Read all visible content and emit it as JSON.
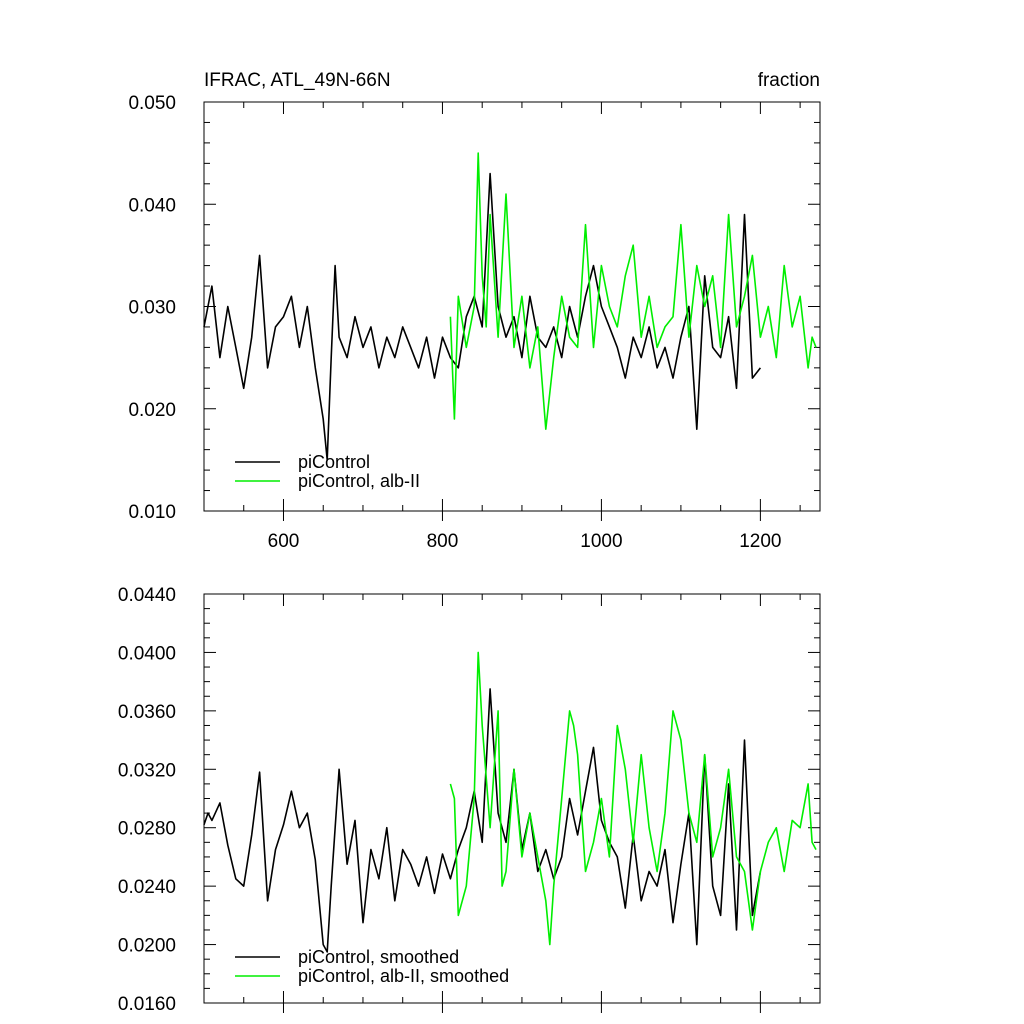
{
  "chart_data": [
    {
      "type": "line",
      "title": "IFRAC, ATL_49N-66N",
      "units": "fraction",
      "xlim": [
        500,
        1275
      ],
      "ylim": [
        0.01,
        0.05
      ],
      "x_ticks": [
        600,
        800,
        1000,
        1200
      ],
      "y_ticks": [
        0.01,
        0.02,
        0.03,
        0.04,
        0.05
      ],
      "y_tick_labels": [
        "0.010",
        "0.020",
        "0.030",
        "0.040",
        "0.050"
      ],
      "grid": false,
      "legend_position": "bottom-left",
      "colors": {
        "piControl": "#000000",
        "alb": "#00ee00"
      },
      "series": [
        {
          "name": "piControl",
          "color": "#000000",
          "x": [
            500,
            510,
            520,
            530,
            540,
            550,
            560,
            570,
            580,
            590,
            600,
            610,
            620,
            630,
            640,
            650,
            655,
            660,
            665,
            670,
            680,
            690,
            700,
            710,
            720,
            730,
            740,
            750,
            760,
            770,
            780,
            790,
            800,
            810,
            820,
            830,
            840,
            850,
            860,
            870,
            880,
            890,
            900,
            910,
            920,
            930,
            940,
            950,
            960,
            970,
            980,
            990,
            1000,
            1010,
            1020,
            1030,
            1040,
            1050,
            1060,
            1070,
            1080,
            1090,
            1100,
            1110,
            1120,
            1130,
            1140,
            1150,
            1160,
            1170,
            1180,
            1190,
            1200
          ],
          "values": [
            0.028,
            0.032,
            0.025,
            0.03,
            0.026,
            0.022,
            0.027,
            0.035,
            0.024,
            0.028,
            0.029,
            0.031,
            0.026,
            0.03,
            0.024,
            0.019,
            0.015,
            0.025,
            0.034,
            0.027,
            0.025,
            0.029,
            0.026,
            0.028,
            0.024,
            0.027,
            0.025,
            0.028,
            0.026,
            0.024,
            0.027,
            0.023,
            0.027,
            0.025,
            0.024,
            0.029,
            0.031,
            0.028,
            0.043,
            0.03,
            0.027,
            0.029,
            0.025,
            0.031,
            0.027,
            0.026,
            0.028,
            0.025,
            0.03,
            0.027,
            0.031,
            0.034,
            0.03,
            0.028,
            0.026,
            0.023,
            0.027,
            0.025,
            0.028,
            0.024,
            0.026,
            0.023,
            0.027,
            0.03,
            0.018,
            0.033,
            0.026,
            0.025,
            0.029,
            0.022,
            0.039,
            0.023,
            0.024
          ]
        },
        {
          "name": "piControl, alb-II",
          "color": "#00ee00",
          "x": [
            810,
            815,
            820,
            830,
            840,
            845,
            850,
            855,
            860,
            870,
            880,
            890,
            900,
            910,
            920,
            930,
            940,
            950,
            960,
            970,
            980,
            990,
            1000,
            1010,
            1020,
            1030,
            1040,
            1050,
            1060,
            1070,
            1080,
            1090,
            1100,
            1110,
            1120,
            1130,
            1140,
            1150,
            1160,
            1170,
            1180,
            1190,
            1200,
            1210,
            1220,
            1230,
            1240,
            1250,
            1260,
            1265,
            1270
          ],
          "values": [
            0.029,
            0.019,
            0.031,
            0.026,
            0.03,
            0.045,
            0.033,
            0.028,
            0.039,
            0.027,
            0.041,
            0.026,
            0.031,
            0.024,
            0.028,
            0.018,
            0.025,
            0.031,
            0.027,
            0.026,
            0.038,
            0.026,
            0.034,
            0.03,
            0.028,
            0.033,
            0.036,
            0.027,
            0.031,
            0.026,
            0.028,
            0.029,
            0.038,
            0.027,
            0.034,
            0.03,
            0.033,
            0.026,
            0.039,
            0.028,
            0.031,
            0.035,
            0.027,
            0.03,
            0.025,
            0.034,
            0.028,
            0.031,
            0.024,
            0.027,
            0.026
          ]
        }
      ]
    },
    {
      "type": "line",
      "xlim": [
        500,
        1275
      ],
      "ylim": [
        0.016,
        0.044
      ],
      "x_ticks": [
        600,
        800,
        1000,
        1200
      ],
      "y_ticks": [
        0.016,
        0.02,
        0.024,
        0.028,
        0.032,
        0.036,
        0.04,
        0.044
      ],
      "y_tick_labels": [
        "0.0160",
        "0.0200",
        "0.0240",
        "0.0280",
        "0.0320",
        "0.0360",
        "0.0400",
        "0.0440"
      ],
      "grid": false,
      "legend_position": "bottom-left",
      "series": [
        {
          "name": "piControl, smoothed",
          "color": "#000000",
          "x": [
            500,
            505,
            510,
            520,
            530,
            540,
            550,
            560,
            570,
            580,
            590,
            600,
            610,
            620,
            630,
            640,
            650,
            655,
            660,
            670,
            680,
            690,
            700,
            710,
            720,
            730,
            740,
            750,
            760,
            770,
            780,
            790,
            800,
            810,
            820,
            830,
            840,
            850,
            860,
            870,
            880,
            890,
            900,
            910,
            920,
            930,
            940,
            950,
            960,
            970,
            980,
            990,
            1000,
            1010,
            1020,
            1030,
            1040,
            1050,
            1060,
            1070,
            1080,
            1090,
            1100,
            1110,
            1120,
            1130,
            1140,
            1150,
            1160,
            1170,
            1180,
            1190,
            1200
          ],
          "values": [
            0.0282,
            0.029,
            0.0285,
            0.0297,
            0.0268,
            0.0245,
            0.024,
            0.0275,
            0.0318,
            0.023,
            0.0265,
            0.0282,
            0.0305,
            0.028,
            0.029,
            0.0258,
            0.02,
            0.0195,
            0.024,
            0.032,
            0.0255,
            0.0285,
            0.0215,
            0.0265,
            0.0245,
            0.028,
            0.023,
            0.0265,
            0.0255,
            0.024,
            0.026,
            0.0235,
            0.0262,
            0.0245,
            0.0265,
            0.028,
            0.0305,
            0.027,
            0.0375,
            0.029,
            0.027,
            0.032,
            0.0265,
            0.029,
            0.025,
            0.0265,
            0.0245,
            0.026,
            0.03,
            0.0275,
            0.0305,
            0.0335,
            0.0285,
            0.027,
            0.026,
            0.0225,
            0.0275,
            0.023,
            0.025,
            0.024,
            0.0265,
            0.0215,
            0.0255,
            0.029,
            0.02,
            0.033,
            0.024,
            0.022,
            0.031,
            0.021,
            0.034,
            0.022,
            0.025
          ]
        },
        {
          "name": "piControl, alb-II, smoothed",
          "color": "#00ee00",
          "x": [
            810,
            815,
            820,
            830,
            840,
            845,
            850,
            860,
            870,
            875,
            880,
            890,
            900,
            910,
            920,
            930,
            935,
            940,
            950,
            960,
            965,
            970,
            980,
            990,
            1000,
            1010,
            1020,
            1030,
            1040,
            1050,
            1060,
            1070,
            1080,
            1090,
            1100,
            1110,
            1120,
            1130,
            1140,
            1150,
            1160,
            1170,
            1180,
            1190,
            1200,
            1210,
            1220,
            1230,
            1240,
            1250,
            1260,
            1265,
            1270
          ],
          "values": [
            0.031,
            0.03,
            0.022,
            0.024,
            0.03,
            0.04,
            0.035,
            0.028,
            0.036,
            0.024,
            0.025,
            0.032,
            0.026,
            0.029,
            0.026,
            0.023,
            0.02,
            0.024,
            0.03,
            0.036,
            0.035,
            0.033,
            0.025,
            0.027,
            0.03,
            0.026,
            0.035,
            0.032,
            0.027,
            0.033,
            0.028,
            0.025,
            0.029,
            0.036,
            0.034,
            0.029,
            0.027,
            0.033,
            0.026,
            0.028,
            0.032,
            0.026,
            0.025,
            0.021,
            0.025,
            0.027,
            0.028,
            0.025,
            0.0285,
            0.028,
            0.031,
            0.027,
            0.0265
          ]
        }
      ]
    }
  ]
}
